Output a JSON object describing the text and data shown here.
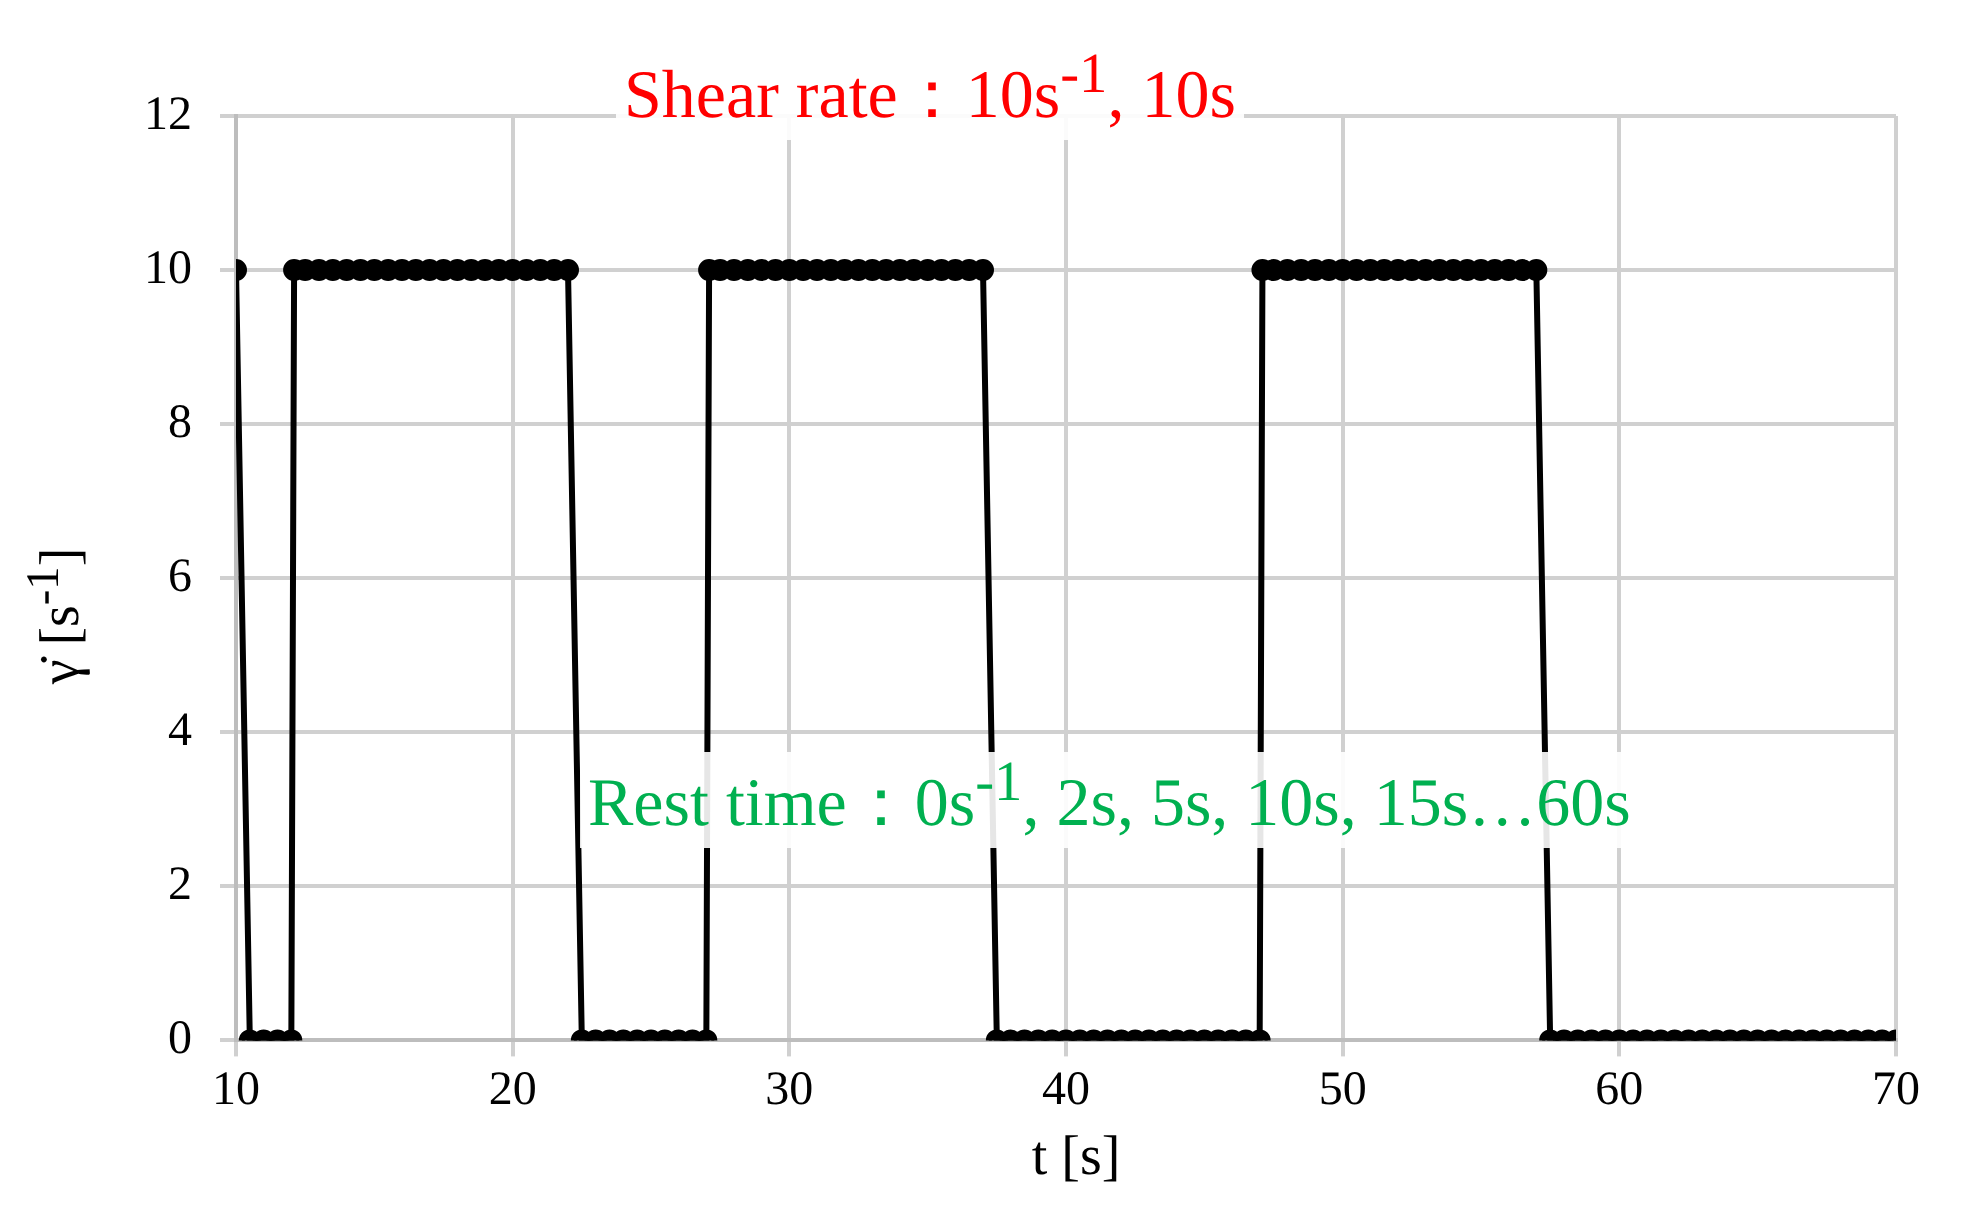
{
  "chart_data": {
    "type": "line",
    "xlabel": "t [s]",
    "ylabel": "γ̇ [s$^{-1}$]",
    "annotations": [
      "Shear rate：10s$^{-1}$, 10s",
      "Rest time：0s$^{-1}$, 2s, 5s, 10s, 15s…60s"
    ],
    "xlim": [
      10,
      70
    ],
    "xticks": [
      10,
      20,
      30,
      40,
      50,
      60,
      70
    ],
    "ylim": [
      0,
      12
    ],
    "yticks": [
      0,
      2,
      4,
      6,
      8,
      10,
      12
    ],
    "grid": true,
    "marker": "circle",
    "line_style": "solid",
    "series": [
      {
        "color": "#000000",
        "x": [
          10,
          10.5,
          11,
          11.5,
          12,
          12.1,
          12.5,
          13,
          13.5,
          14,
          14.5,
          15,
          15.5,
          16,
          16.5,
          17,
          17.5,
          18,
          18.5,
          19,
          19.5,
          20,
          20.5,
          21,
          21.5,
          22,
          22.5,
          23,
          23.5,
          24,
          24.5,
          25,
          25.5,
          26,
          26.5,
          27,
          27.1,
          27.5,
          28,
          28.5,
          29,
          29.5,
          30,
          30.5,
          31,
          31.5,
          32,
          32.5,
          33,
          33.5,
          34,
          34.5,
          35,
          35.5,
          36,
          36.5,
          37,
          37.5,
          38,
          38.5,
          39,
          39.5,
          40,
          40.5,
          41,
          41.5,
          42,
          42.5,
          43,
          43.5,
          44,
          44.5,
          45,
          45.5,
          46,
          46.5,
          47,
          47.1,
          47.5,
          48,
          48.5,
          49,
          49.5,
          50,
          50.5,
          51,
          51.5,
          52,
          52.5,
          53,
          53.5,
          54,
          54.5,
          55,
          55.5,
          56,
          56.5,
          57,
          57.5,
          58,
          58.5,
          59,
          59.5,
          60,
          60.5,
          61,
          61.5,
          62,
          62.5,
          63,
          63.5,
          64,
          64.5,
          65,
          65.5,
          66,
          66.5,
          67,
          67.5,
          68,
          68.5,
          69,
          69.5,
          70
        ],
        "values": [
          10,
          0,
          0,
          0,
          0,
          10,
          10,
          10,
          10,
          10,
          10,
          10,
          10,
          10,
          10,
          10,
          10,
          10,
          10,
          10,
          10,
          10,
          10,
          10,
          10,
          10,
          0,
          0,
          0,
          0,
          0,
          0,
          0,
          0,
          0,
          0,
          10,
          10,
          10,
          10,
          10,
          10,
          10,
          10,
          10,
          10,
          10,
          10,
          10,
          10,
          10,
          10,
          10,
          10,
          10,
          10,
          10,
          0,
          0,
          0,
          0,
          0,
          0,
          0,
          0,
          0,
          0,
          0,
          0,
          0,
          0,
          0,
          0,
          0,
          0,
          0,
          0,
          10,
          10,
          10,
          10,
          10,
          10,
          10,
          10,
          10,
          10,
          10,
          10,
          10,
          10,
          10,
          10,
          10,
          10,
          10,
          10,
          10,
          0,
          0,
          0,
          0,
          0,
          0,
          0,
          0,
          0,
          0,
          0,
          0,
          0,
          0,
          0,
          0,
          0,
          0,
          0,
          0,
          0,
          0,
          0,
          0,
          0,
          0
        ]
      }
    ]
  }
}
